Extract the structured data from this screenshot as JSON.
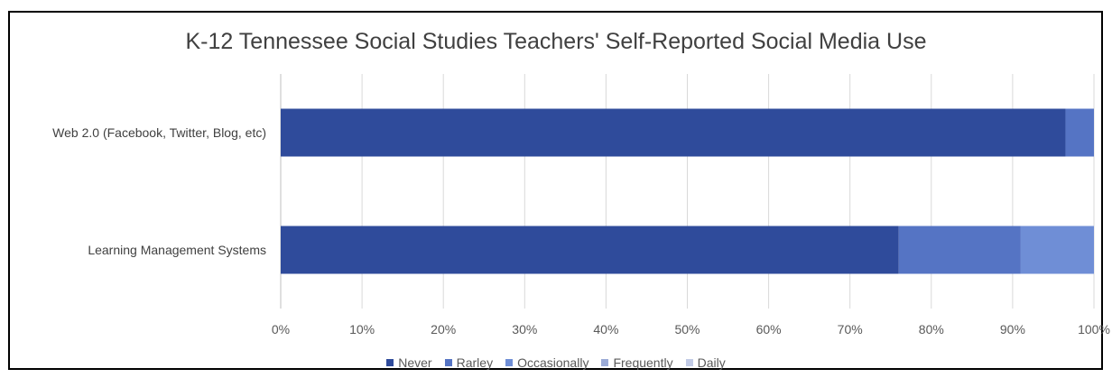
{
  "chart_data": {
    "type": "bar",
    "orientation": "horizontal",
    "stacked": "percent",
    "title": "K-12 Tennessee Social Studies Teachers' Self-Reported Social Media Use",
    "categories": [
      "Web 2.0 (Facebook, Twitter, Blog, etc)",
      "Learning Management Systems"
    ],
    "series": [
      {
        "name": "Never",
        "values": [
          96.5,
          76
        ],
        "color": "#2f4b9b"
      },
      {
        "name": "Rarley",
        "values": [
          3.5,
          15
        ],
        "color": "#5574c4"
      },
      {
        "name": "Occasionally",
        "values": [
          0,
          9
        ],
        "color": "#6f8ed6"
      },
      {
        "name": "Frequently",
        "values": [
          0,
          0
        ],
        "color": "#9aaad6"
      },
      {
        "name": "Daily",
        "values": [
          0,
          0
        ],
        "color": "#c2cbe6"
      }
    ],
    "xlim": [
      0,
      100
    ],
    "x_ticks": [
      "0%",
      "10%",
      "20%",
      "30%",
      "40%",
      "50%",
      "60%",
      "70%",
      "80%",
      "90%",
      "100%"
    ],
    "grid": true,
    "legend_position": "bottom"
  }
}
